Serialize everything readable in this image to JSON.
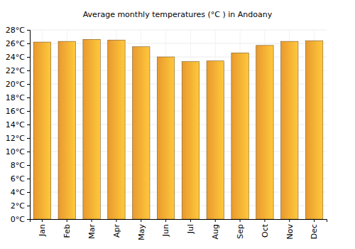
{
  "chart_data": {
    "type": "bar",
    "title": "Average monthly temperatures (°C ) in Andoany",
    "categories": [
      "Jan",
      "Feb",
      "Mar",
      "Apr",
      "May",
      "Jun",
      "Jul",
      "Aug",
      "Sep",
      "Oct",
      "Nov",
      "Dec"
    ],
    "values": [
      26.2,
      26.3,
      26.6,
      26.5,
      25.5,
      24.0,
      23.3,
      23.4,
      24.6,
      25.7,
      26.3,
      26.4
    ],
    "color": "#ffa733",
    "ylim": [
      0,
      28
    ],
    "yticks": [
      {
        "value": 0,
        "label": "0°C"
      },
      {
        "value": 2,
        "label": "2°C"
      },
      {
        "value": 4,
        "label": "4°C"
      },
      {
        "value": 6,
        "label": "6°C"
      },
      {
        "value": 8,
        "label": "8°C"
      },
      {
        "value": 10,
        "label": "10°C"
      },
      {
        "value": 12,
        "label": "12°C"
      },
      {
        "value": 14,
        "label": "14°C"
      },
      {
        "value": 16,
        "label": "16°C"
      },
      {
        "value": 18,
        "label": "18°C"
      },
      {
        "value": 20,
        "label": "20°C"
      },
      {
        "value": 22,
        "label": "22°C"
      },
      {
        "value": 24,
        "label": "24°C"
      },
      {
        "value": 26,
        "label": "26°C"
      },
      {
        "value": 28,
        "label": "28°C"
      }
    ],
    "grid": true
  }
}
